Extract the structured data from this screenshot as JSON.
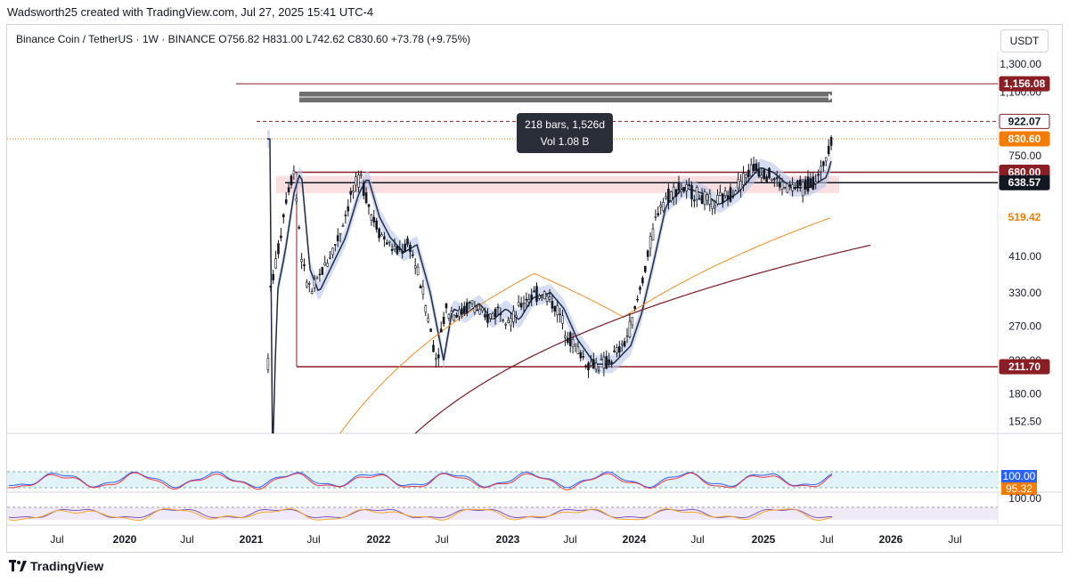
{
  "credit": "Wadsworth25 created with TradingView.com, Jul 27, 2025 15:41 UTC-4",
  "symbol_info": {
    "name": "Binance Coin / TetherUS",
    "interval": "1W",
    "exchange": "BINANCE",
    "ohlc": "O756.82  H831.00  L742.62  C830.60  +73.78 (+9.75%)"
  },
  "currency_button": "USDT",
  "footer_brand": "TradingView",
  "colors": {
    "up": "#131722",
    "down": "#131722",
    "ema_fast": "#1f2a44",
    "ema_band": "#b8c7e8",
    "ma_orange": "#f28c28",
    "ma_maroon": "#7a1a22",
    "level_red": "#8b1e24",
    "price_orange": "#f57c00",
    "ma_label_orange": "#f57c00"
  },
  "chart_data": {
    "type": "candlestick",
    "symbol": "Binance Coin / TetherUS",
    "scale": "log",
    "y_axis_ticks": [
      "1,300.00",
      "1,100.00",
      "750.00",
      "410.00",
      "330.00",
      "270.00",
      "220.00",
      "180.00",
      "152.50"
    ],
    "x_axis_ticks": [
      "Jul",
      "2020",
      "Jul",
      "2021",
      "Jul",
      "2022",
      "Jul",
      "2023",
      "Jul",
      "2024",
      "Jul",
      "2025",
      "Jul",
      "2026",
      "Jul"
    ],
    "price_labels": [
      {
        "label": "1,156.08",
        "value": 1156.08,
        "color": "#8b1e24",
        "text_color": "#ffffff"
      },
      {
        "label": "922.07",
        "value": 922.07,
        "color": "#ffffff",
        "text_color": "#131722",
        "border": "#8b1e24"
      },
      {
        "label": "830.60",
        "value": 830.6,
        "color": "#f57c00",
        "text_color": "#ffffff"
      },
      {
        "label": "680.00",
        "value": 680.0,
        "color": "#8b1e24",
        "text_color": "#ffffff"
      },
      {
        "label": "638.57",
        "value": 638.57,
        "color": "#131722",
        "text_color": "#ffffff"
      },
      {
        "label": "519.42",
        "value": 519.42,
        "color": "#ffffff",
        "text_color": "#f57c00"
      },
      {
        "label": "211.70",
        "value": 211.7,
        "color": "#8b1e24",
        "text_color": "#ffffff"
      }
    ],
    "horizontal_levels": [
      1156.08,
      922.07,
      830.6,
      680.0,
      638.57,
      211.7
    ],
    "measure_label": {
      "line1": "218 bars, 1,526d",
      "line2": "Vol 1.08 B"
    },
    "indicator_labels": {
      "rsi_top": "100.00",
      "rsi_value": "95.32",
      "stoch_top": "100.00"
    },
    "close": 830.6,
    "open": 756.82,
    "high": 831.0,
    "low": 742.62,
    "change": "+73.78 (+9.75%)"
  }
}
